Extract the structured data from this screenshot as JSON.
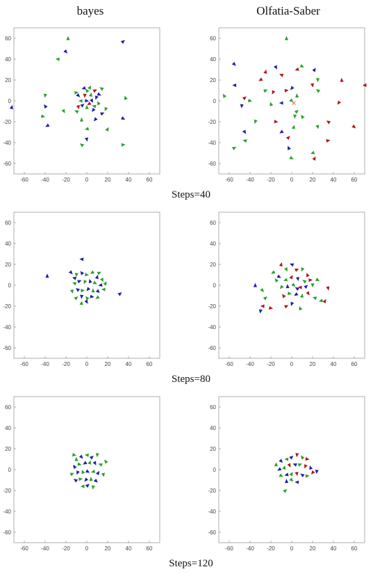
{
  "headers": {
    "left": "bayes",
    "right": "Olfatia-Saber"
  },
  "steps": [
    "Steps=40",
    "Steps=80",
    "Steps=120"
  ],
  "colors": {
    "green": "#2ca02c",
    "blue": "#1f1fa8",
    "red": "#b01818",
    "target": "#ff6060"
  },
  "chart_data": [
    {
      "type": "scatter",
      "title": "",
      "panel": "bayes",
      "step": "Steps=40",
      "xlim": [
        -70,
        70
      ],
      "ylim": [
        -70,
        70
      ],
      "ticks": [
        -60,
        -40,
        -20,
        0,
        20,
        40,
        60
      ],
      "points": [
        [
          -18,
          60,
          "g"
        ],
        [
          -20,
          47,
          "b"
        ],
        [
          -28,
          40,
          "g"
        ],
        [
          35,
          57,
          "b"
        ],
        [
          -40,
          5,
          "g"
        ],
        [
          -40,
          -5,
          "b"
        ],
        [
          -42,
          -15,
          "g"
        ],
        [
          -38,
          -24,
          "b"
        ],
        [
          -72,
          -6,
          "b"
        ],
        [
          -22,
          -10,
          "g"
        ],
        [
          -10,
          -10,
          "g"
        ],
        [
          15,
          -12,
          "b"
        ],
        [
          18,
          -8,
          "g"
        ],
        [
          37,
          3,
          "g"
        ],
        [
          35,
          -17,
          "b"
        ],
        [
          0,
          -27,
          "g"
        ],
        [
          20,
          -27,
          "g"
        ],
        [
          0,
          -37,
          "b"
        ],
        [
          -5,
          -42,
          "g"
        ],
        [
          35,
          -42,
          "g"
        ],
        [
          8,
          -18,
          "b"
        ],
        [
          -5,
          -18,
          "g"
        ],
        [
          -8,
          5,
          "b"
        ],
        [
          -6,
          0,
          "g"
        ],
        [
          -4,
          -4,
          "b"
        ],
        [
          -2,
          5,
          "r"
        ],
        [
          0,
          10,
          "g"
        ],
        [
          0,
          0,
          "b"
        ],
        [
          2,
          -3,
          "r"
        ],
        [
          4,
          6,
          "g"
        ],
        [
          5,
          0,
          "b"
        ],
        [
          7,
          -5,
          "g"
        ],
        [
          8,
          10,
          "r"
        ],
        [
          9,
          3,
          "b"
        ],
        [
          11,
          -2,
          "g"
        ],
        [
          12,
          6,
          "b"
        ],
        [
          -3,
          12,
          "b"
        ],
        [
          3,
          13,
          "g"
        ],
        [
          -8,
          -6,
          "r"
        ],
        [
          14,
          12,
          "g"
        ],
        [
          -10,
          8,
          "g"
        ],
        [
          6,
          -9,
          "b"
        ],
        [
          0,
          -6,
          "g"
        ]
      ]
    },
    {
      "type": "scatter",
      "title": "",
      "panel": "Olfatia-Saber",
      "step": "Steps=40",
      "xlim": [
        -70,
        70
      ],
      "ylim": [
        -70,
        70
      ],
      "ticks": [
        -60,
        -40,
        -20,
        0,
        20,
        40,
        60
      ],
      "target": [
        2,
        -2
      ],
      "points": [
        [
          -5,
          60,
          "g"
        ],
        [
          -55,
          35,
          "b"
        ],
        [
          -55,
          15,
          "b"
        ],
        [
          -45,
          3,
          "r"
        ],
        [
          -48,
          -5,
          "b"
        ],
        [
          -65,
          5,
          "g"
        ],
        [
          -40,
          0,
          "g"
        ],
        [
          -30,
          20,
          "r"
        ],
        [
          -25,
          28,
          "r"
        ],
        [
          -15,
          32,
          "b"
        ],
        [
          -10,
          25,
          "r"
        ],
        [
          -25,
          10,
          "g"
        ],
        [
          -18,
          8,
          "r"
        ],
        [
          -20,
          -3,
          "g"
        ],
        [
          10,
          33,
          "g"
        ],
        [
          5,
          30,
          "r"
        ],
        [
          22,
          30,
          "b"
        ],
        [
          20,
          15,
          "r"
        ],
        [
          25,
          10,
          "g"
        ],
        [
          -5,
          10,
          "r"
        ],
        [
          0,
          12,
          "b"
        ],
        [
          5,
          5,
          "g"
        ],
        [
          0,
          0,
          "g"
        ],
        [
          -10,
          -2,
          "b"
        ],
        [
          5,
          -10,
          "g"
        ],
        [
          3,
          -15,
          "g"
        ],
        [
          10,
          -15,
          "g"
        ],
        [
          -15,
          -20,
          "r"
        ],
        [
          -10,
          -30,
          "b"
        ],
        [
          2,
          -25,
          "g"
        ],
        [
          -45,
          -30,
          "b"
        ],
        [
          -45,
          -38,
          "g"
        ],
        [
          -55,
          -45,
          "g"
        ],
        [
          -35,
          -20,
          "g"
        ],
        [
          -3,
          -45,
          "b"
        ],
        [
          0,
          -55,
          "g"
        ],
        [
          20,
          -50,
          "g"
        ],
        [
          22,
          -55,
          "r"
        ],
        [
          25,
          -25,
          "g"
        ],
        [
          35,
          -20,
          "r"
        ],
        [
          35,
          -38,
          "r"
        ],
        [
          45,
          -2,
          "r"
        ],
        [
          48,
          20,
          "r"
        ],
        [
          60,
          -25,
          "r"
        ],
        [
          70,
          15,
          "r"
        ],
        [
          -3,
          -35,
          "r"
        ],
        [
          25,
          20,
          "g"
        ]
      ]
    },
    {
      "type": "scatter",
      "title": "",
      "panel": "bayes",
      "step": "Steps=80",
      "xlim": [
        -70,
        70
      ],
      "ylim": [
        -70,
        70
      ],
      "ticks": [
        -60,
        -40,
        -20,
        0,
        20,
        40,
        60
      ],
      "points": [
        [
          -38,
          9,
          "b"
        ],
        [
          -15,
          12,
          "b"
        ],
        [
          -5,
          25,
          "b"
        ],
        [
          32,
          -8,
          "b"
        ],
        [
          -10,
          10,
          "g"
        ],
        [
          -5,
          12,
          "b"
        ],
        [
          0,
          10,
          "g"
        ],
        [
          5,
          12,
          "g"
        ],
        [
          10,
          8,
          "b"
        ],
        [
          15,
          5,
          "g"
        ],
        [
          -12,
          2,
          "g"
        ],
        [
          -7,
          4,
          "b"
        ],
        [
          -2,
          3,
          "g"
        ],
        [
          3,
          4,
          "b"
        ],
        [
          8,
          2,
          "g"
        ],
        [
          13,
          0,
          "b"
        ],
        [
          18,
          2,
          "g"
        ],
        [
          -14,
          -6,
          "g"
        ],
        [
          -9,
          -4,
          "b"
        ],
        [
          -4,
          -5,
          "g"
        ],
        [
          1,
          -4,
          "b"
        ],
        [
          6,
          -5,
          "g"
        ],
        [
          11,
          -6,
          "b"
        ],
        [
          16,
          -4,
          "g"
        ],
        [
          -10,
          -12,
          "g"
        ],
        [
          -5,
          -11,
          "b"
        ],
        [
          0,
          -12,
          "g"
        ],
        [
          5,
          -11,
          "b"
        ],
        [
          10,
          -12,
          "g"
        ],
        [
          -5,
          -17,
          "g"
        ],
        [
          0,
          -16,
          "b"
        ],
        [
          -12,
          7,
          "b"
        ],
        [
          12,
          12,
          "g"
        ]
      ]
    },
    {
      "type": "scatter",
      "title": "",
      "panel": "Olfatia-Saber",
      "step": "Steps=80",
      "xlim": [
        -70,
        70
      ],
      "ylim": [
        -70,
        70
      ],
      "ticks": [
        -60,
        -40,
        -20,
        0,
        20,
        40,
        60
      ],
      "points": [
        [
          -35,
          0,
          "b"
        ],
        [
          -28,
          -5,
          "g"
        ],
        [
          -28,
          -20,
          "r"
        ],
        [
          -25,
          -12,
          "g"
        ],
        [
          -30,
          -25,
          "b"
        ],
        [
          -15,
          5,
          "g"
        ],
        [
          -20,
          -22,
          "r"
        ],
        [
          -18,
          12,
          "g"
        ],
        [
          -10,
          20,
          "r"
        ],
        [
          -5,
          15,
          "g"
        ],
        [
          0,
          20,
          "b"
        ],
        [
          5,
          15,
          "r"
        ],
        [
          10,
          15,
          "g"
        ],
        [
          15,
          10,
          "r"
        ],
        [
          -12,
          8,
          "b"
        ],
        [
          -6,
          5,
          "g"
        ],
        [
          0,
          8,
          "r"
        ],
        [
          6,
          6,
          "b"
        ],
        [
          12,
          4,
          "g"
        ],
        [
          18,
          5,
          "r"
        ],
        [
          -10,
          -2,
          "g"
        ],
        [
          -4,
          -1,
          "b"
        ],
        [
          2,
          0,
          "g"
        ],
        [
          8,
          -2,
          "r"
        ],
        [
          14,
          -1,
          "b"
        ],
        [
          20,
          0,
          "g"
        ],
        [
          -8,
          -10,
          "r"
        ],
        [
          -2,
          -8,
          "g"
        ],
        [
          4,
          -9,
          "b"
        ],
        [
          10,
          -10,
          "g"
        ],
        [
          16,
          -8,
          "r"
        ],
        [
          22,
          -12,
          "g"
        ],
        [
          -5,
          -20,
          "r"
        ],
        [
          0,
          -18,
          "b"
        ],
        [
          8,
          -22,
          "g"
        ],
        [
          25,
          5,
          "g"
        ],
        [
          28,
          -15,
          "g"
        ],
        [
          32,
          -15,
          "r"
        ],
        [
          35,
          -3,
          "r"
        ],
        [
          5,
          -3,
          "b"
        ]
      ]
    },
    {
      "type": "scatter",
      "title": "",
      "panel": "bayes",
      "step": "Steps=120",
      "xlim": [
        -70,
        70
      ],
      "ylim": [
        -70,
        70
      ],
      "ticks": [
        -60,
        -40,
        -20,
        0,
        20,
        40,
        60
      ],
      "points": [
        [
          -10,
          10,
          "g"
        ],
        [
          -5,
          12,
          "b"
        ],
        [
          0,
          14,
          "g"
        ],
        [
          5,
          12,
          "b"
        ],
        [
          10,
          14,
          "g"
        ],
        [
          -12,
          3,
          "b"
        ],
        [
          -7,
          5,
          "g"
        ],
        [
          -2,
          6,
          "b"
        ],
        [
          3,
          7,
          "g"
        ],
        [
          8,
          6,
          "b"
        ],
        [
          13,
          5,
          "g"
        ],
        [
          -14,
          -4,
          "g"
        ],
        [
          -9,
          -3,
          "b"
        ],
        [
          -4,
          -2,
          "g"
        ],
        [
          1,
          -2,
          "b"
        ],
        [
          6,
          -2,
          "g"
        ],
        [
          11,
          -3,
          "b"
        ],
        [
          16,
          -5,
          "g"
        ],
        [
          -11,
          -10,
          "b"
        ],
        [
          -6,
          -9,
          "g"
        ],
        [
          -1,
          -10,
          "b"
        ],
        [
          4,
          -9,
          "g"
        ],
        [
          9,
          -11,
          "b"
        ],
        [
          -4,
          -16,
          "g"
        ],
        [
          1,
          -15,
          "b"
        ],
        [
          6,
          -17,
          "g"
        ],
        [
          18,
          8,
          "g"
        ],
        [
          -12,
          14,
          "g"
        ]
      ]
    },
    {
      "type": "scatter",
      "title": "",
      "panel": "Olfatia-Saber",
      "step": "Steps=120",
      "xlim": [
        -70,
        70
      ],
      "ylim": [
        -70,
        70
      ],
      "ticks": [
        -60,
        -40,
        -20,
        0,
        20,
        40,
        60
      ],
      "points": [
        [
          -15,
          5,
          "g"
        ],
        [
          -10,
          8,
          "b"
        ],
        [
          -5,
          10,
          "g"
        ],
        [
          0,
          12,
          "b"
        ],
        [
          5,
          14,
          "r"
        ],
        [
          10,
          12,
          "g"
        ],
        [
          15,
          10,
          "r"
        ],
        [
          -12,
          0,
          "b"
        ],
        [
          -7,
          2,
          "g"
        ],
        [
          -2,
          4,
          "r"
        ],
        [
          3,
          5,
          "b"
        ],
        [
          8,
          5,
          "g"
        ],
        [
          13,
          3,
          "r"
        ],
        [
          18,
          2,
          "b"
        ],
        [
          -10,
          -6,
          "g"
        ],
        [
          -5,
          -5,
          "b"
        ],
        [
          0,
          -4,
          "g"
        ],
        [
          5,
          -4,
          "r"
        ],
        [
          10,
          -5,
          "b"
        ],
        [
          15,
          -6,
          "g"
        ],
        [
          20,
          -3,
          "r"
        ],
        [
          -5,
          -11,
          "b"
        ],
        [
          0,
          -10,
          "g"
        ],
        [
          5,
          -12,
          "b"
        ],
        [
          -6,
          -20,
          "g"
        ],
        [
          24,
          -2,
          "b"
        ]
      ]
    }
  ]
}
